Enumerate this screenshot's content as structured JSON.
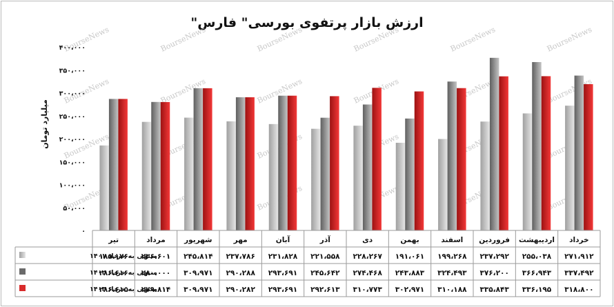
{
  "chart_data": {
    "type": "bar",
    "title": "ارزش بازار پرتفوی بورسی\" فارس\"",
    "ylabel": "میلیارد تومان",
    "ylim": [
      0,
      400000
    ],
    "yticks": [
      "۰",
      "۵۰،۰۰۰",
      "۱۰۰،۰۰۰",
      "۱۵۰،۰۰۰",
      "۲۰۰،۰۰۰",
      "۲۵۰،۰۰۰",
      "۳۰۰،۰۰۰",
      "۳۵۰،۰۰۰",
      "۴۰۰،۰۰۰"
    ],
    "ytick_values": [
      0,
      50000,
      100000,
      150000,
      200000,
      250000,
      300000,
      350000,
      400000
    ],
    "categories": [
      "تیر",
      "مرداد",
      "شهریور",
      "مهر",
      "آبان",
      "آذر",
      "دی",
      "بهمن",
      "اسفند",
      "فروردین",
      "اردیبهشت",
      "خرداد"
    ],
    "series": [
      {
        "name": "منتهی به خرداد ۱۴۰۱",
        "color": "#8c8c8c",
        "values": [
          185176,
          236601,
          245814,
          237786,
          231828,
          221558,
          228267,
          191061,
          199268,
          237292,
          255038,
          271912
        ],
        "labels": [
          "۱۸۵،۱۷۶",
          "۲۳۶،۶۰۱",
          "۲۴۵،۸۱۴",
          "۲۳۷،۷۸۶",
          "۲۳۱،۸۲۸",
          "۲۲۱،۵۵۸",
          "۲۲۸،۲۶۷",
          "۱۹۱،۰۶۱",
          "۱۹۹،۲۶۸",
          "۲۳۷،۲۹۲",
          "۲۵۵،۰۳۸",
          "۲۷۱،۹۱۲"
        ]
      },
      {
        "name": "منتهی به خرداد ۱۴۰۲",
        "color": "#6a6a6a",
        "values": [
          286616,
          280000,
          309971,
          290288,
          293691,
          245642,
          274468,
          243883,
          324493,
          376200,
          366943,
          337492
        ],
        "labels": [
          "۲۸۶،۶۱۶",
          "۲۸۰،۰۰۰",
          "۳۰۹،۹۷۱",
          "۲۹۰،۲۸۸",
          "۲۹۳،۶۹۱",
          "۲۴۵،۶۴۲",
          "۲۷۴،۴۶۸",
          "۲۴۳،۸۸۳",
          "۳۲۴،۴۹۳",
          "۳۷۶،۲۰۰",
          "۳۶۶،۹۴۳",
          "۳۳۷،۴۹۲"
        ]
      },
      {
        "name": "منتهی به خرداد ۱۴۰۳",
        "color": "#d92b2b",
        "values": [
          286615,
          279814,
          309971,
          290282,
          293691,
          292613,
          310773,
          302971,
          310188,
          335843,
          336195,
          318800
        ],
        "labels": [
          "۲۸۶،۶۱۵",
          "۲۷۹،۸۱۴",
          "۳۰۹،۹۷۱",
          "۲۹۰،۲۸۲",
          "۲۹۳،۶۹۱",
          "۲۹۲،۶۱۳",
          "۳۱۰،۷۷۳",
          "۳۰۲،۹۷۱",
          "۳۱۰،۱۸۸",
          "۳۳۵،۸۴۳",
          "۳۳۶،۱۹۵",
          "۳۱۸،۸۰۰"
        ]
      }
    ],
    "grid": false,
    "legend": "table-left",
    "watermark": "BourseNews"
  }
}
